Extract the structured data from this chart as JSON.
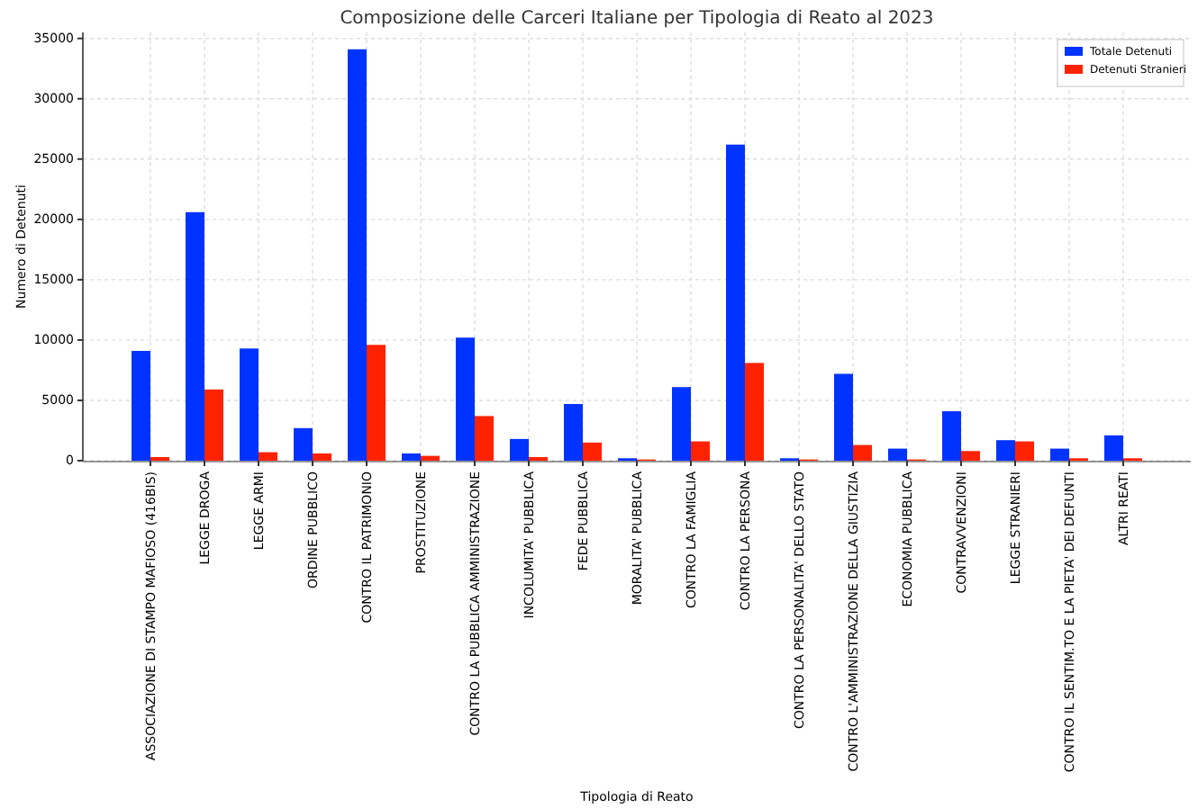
{
  "chart_data": {
    "type": "bar",
    "title": "Composizione delle Carceri Italiane per Tipologia di Reato al 2023",
    "xlabel": "Tipologia di Reato",
    "ylabel": "Numero di Detenuti",
    "categories": [
      "ASSOCIAZIONE DI STAMPO MAFIOSO (416BIS)",
      "LEGGE DROGA",
      "LEGGE ARMI",
      "ORDINE PUBBLICO",
      "CONTRO IL PATRIMONIO",
      "PROSTITUZIONE",
      "CONTRO LA PUBBLICA AMMINISTRAZIONE",
      "INCOLUMITA' PUBBLICA",
      "FEDE PUBBLICA",
      "MORALITA' PUBBLICA",
      "CONTRO LA FAMIGLIA",
      "CONTRO LA PERSONA",
      "CONTRO LA PERSONALITA' DELLO STATO",
      "CONTRO L'AMMINISTRAZIONE DELLA GIUSTIZIA",
      "ECONOMIA PUBBLICA",
      "CONTRAVVENZIONI",
      "LEGGE STRANIERI",
      "CONTRO IL SENTIM.TO E LA PIETA' DEI DEFUNTI",
      "ALTRI REATI"
    ],
    "series": [
      {
        "name": "Totale Detenuti",
        "color": "#0033ff",
        "values": [
          9100,
          20600,
          9300,
          2700,
          34100,
          600,
          10200,
          1800,
          4700,
          200,
          6100,
          26200,
          200,
          7200,
          1000,
          4100,
          1700,
          1000,
          2100
        ]
      },
      {
        "name": "Detenuti Stranieri",
        "color": "#ff2200",
        "values": [
          300,
          5900,
          700,
          600,
          9600,
          400,
          3700,
          300,
          1500,
          100,
          1600,
          8100,
          100,
          1300,
          100,
          800,
          1600,
          200,
          200
        ]
      }
    ],
    "ylim": [
      0,
      35500
    ],
    "yticks": [
      0,
      5000,
      10000,
      15000,
      20000,
      25000,
      30000,
      35000
    ],
    "grid": true,
    "legend": "top right"
  }
}
